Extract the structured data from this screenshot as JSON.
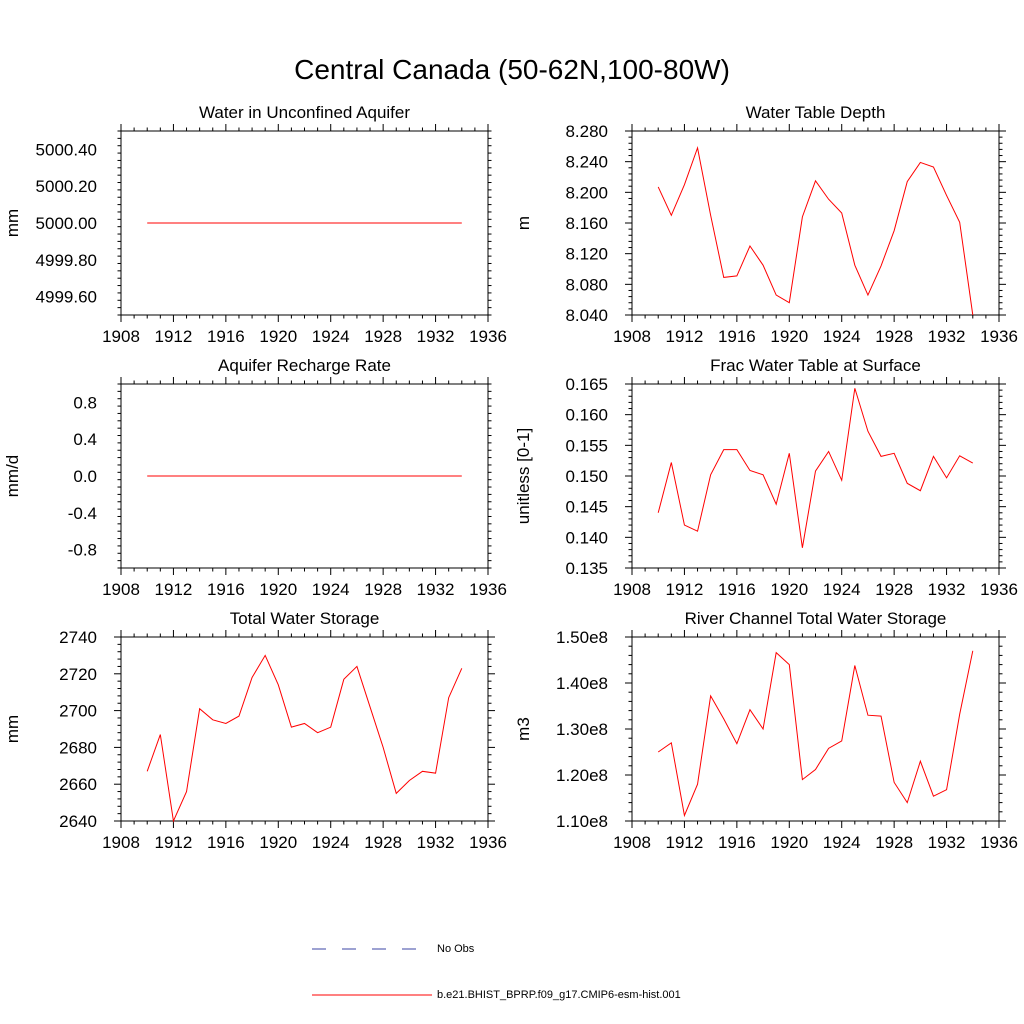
{
  "figure": {
    "title": "Central Canada (50-62N,100-80W)",
    "legend": [
      {
        "label": "No Obs",
        "color": "#3b46a6",
        "dash": true
      },
      {
        "label": "b.e21.BHIST_BPRP.f09_g17.CMIP6-esm-hist.001",
        "color": "#ff0000",
        "dash": false
      }
    ]
  },
  "chart_data": [
    {
      "type": "line",
      "title": "Water in Unconfined Aquifer",
      "xlabel": "",
      "ylabel": "mm",
      "xlim": [
        1908,
        1936
      ],
      "ylim": [
        4999.5,
        5000.5
      ],
      "xticks": [
        1908,
        1912,
        1916,
        1920,
        1924,
        1928,
        1932,
        1936
      ],
      "xtick_labels": [
        "1908",
        "1912",
        "1916",
        "1920",
        "1924",
        "1928",
        "1932",
        "1936"
      ],
      "yticks": [
        4999.6,
        4999.8,
        5000.0,
        5000.2,
        5000.4
      ],
      "ytick_labels": [
        "4999.60",
        "4999.80",
        "5000.00",
        "5000.20",
        "5000.40"
      ],
      "grid": false,
      "x": [
        1910,
        1911,
        1912,
        1913,
        1914,
        1915,
        1916,
        1917,
        1918,
        1919,
        1920,
        1921,
        1922,
        1923,
        1924,
        1925,
        1926,
        1927,
        1928,
        1929,
        1930,
        1931,
        1932,
        1933,
        1934
      ],
      "series": [
        {
          "name": "b.e21.BHIST_BPRP.f09_g17.CMIP6-esm-hist.001",
          "color": "#ff0000",
          "values": [
            5000.0,
            5000.0,
            5000.0,
            5000.0,
            5000.0,
            5000.0,
            5000.0,
            5000.0,
            5000.0,
            5000.0,
            5000.0,
            5000.0,
            5000.0,
            5000.0,
            5000.0,
            5000.0,
            5000.0,
            5000.0,
            5000.0,
            5000.0,
            5000.0,
            5000.0,
            5000.0,
            5000.0,
            5000.0
          ]
        }
      ]
    },
    {
      "type": "line",
      "title": "Water Table Depth",
      "xlabel": "",
      "ylabel": "m",
      "xlim": [
        1908,
        1936
      ],
      "ylim": [
        8.04,
        8.28
      ],
      "xticks": [
        1908,
        1912,
        1916,
        1920,
        1924,
        1928,
        1932,
        1936
      ],
      "xtick_labels": [
        "1908",
        "1912",
        "1916",
        "1920",
        "1924",
        "1928",
        "1932",
        "1936"
      ],
      "yticks": [
        8.04,
        8.08,
        8.12,
        8.16,
        8.2,
        8.24,
        8.28
      ],
      "ytick_labels": [
        "8.040",
        "8.080",
        "8.120",
        "8.160",
        "8.200",
        "8.240",
        "8.280"
      ],
      "grid": false,
      "x": [
        1910,
        1911,
        1912,
        1913,
        1914,
        1915,
        1916,
        1917,
        1918,
        1919,
        1920,
        1921,
        1922,
        1923,
        1924,
        1925,
        1926,
        1927,
        1928,
        1929,
        1930,
        1931,
        1932,
        1933,
        1934
      ],
      "series": [
        {
          "name": "b.e21.BHIST_BPRP.f09_g17.CMIP6-esm-hist.001",
          "color": "#ff0000",
          "values": [
            8.207,
            8.17,
            8.21,
            8.258,
            8.17,
            8.089,
            8.091,
            8.13,
            8.105,
            8.066,
            8.056,
            8.168,
            8.215,
            8.191,
            8.173,
            8.105,
            8.066,
            8.104,
            8.15,
            8.214,
            8.239,
            8.233,
            8.196,
            8.161,
            8.04
          ]
        }
      ]
    },
    {
      "type": "line",
      "title": "Aquifer Recharge Rate",
      "xlabel": "",
      "ylabel": "mm/d",
      "xlim": [
        1908,
        1936
      ],
      "ylim": [
        -1.0,
        1.0
      ],
      "xticks": [
        1908,
        1912,
        1916,
        1920,
        1924,
        1928,
        1932,
        1936
      ],
      "xtick_labels": [
        "1908",
        "1912",
        "1916",
        "1920",
        "1924",
        "1928",
        "1932",
        "1936"
      ],
      "yticks": [
        -0.8,
        -0.4,
        0.0,
        0.4,
        0.8
      ],
      "ytick_labels": [
        "-0.8",
        "-0.4",
        "0.0",
        "0.4",
        "0.8"
      ],
      "grid": false,
      "x": [
        1910,
        1911,
        1912,
        1913,
        1914,
        1915,
        1916,
        1917,
        1918,
        1919,
        1920,
        1921,
        1922,
        1923,
        1924,
        1925,
        1926,
        1927,
        1928,
        1929,
        1930,
        1931,
        1932,
        1933,
        1934
      ],
      "series": [
        {
          "name": "b.e21.BHIST_BPRP.f09_g17.CMIP6-esm-hist.001",
          "color": "#ff0000",
          "values": [
            0,
            0,
            0,
            0,
            0,
            0,
            0,
            0,
            0,
            0,
            0,
            0,
            0,
            0,
            0,
            0,
            0,
            0,
            0,
            0,
            0,
            0,
            0,
            0,
            0
          ]
        }
      ]
    },
    {
      "type": "line",
      "title": "Frac Water Table at Surface",
      "xlabel": "",
      "ylabel": "unitless [0-1]",
      "xlim": [
        1908,
        1936
      ],
      "ylim": [
        0.135,
        0.165
      ],
      "xticks": [
        1908,
        1912,
        1916,
        1920,
        1924,
        1928,
        1932,
        1936
      ],
      "xtick_labels": [
        "1908",
        "1912",
        "1916",
        "1920",
        "1924",
        "1928",
        "1932",
        "1936"
      ],
      "yticks": [
        0.135,
        0.14,
        0.145,
        0.15,
        0.155,
        0.16,
        0.165
      ],
      "ytick_labels": [
        "0.135",
        "0.140",
        "0.145",
        "0.150",
        "0.155",
        "0.160",
        "0.165"
      ],
      "grid": false,
      "x": [
        1910,
        1911,
        1912,
        1913,
        1914,
        1915,
        1916,
        1917,
        1918,
        1919,
        1920,
        1921,
        1922,
        1923,
        1924,
        1925,
        1926,
        1927,
        1928,
        1929,
        1930,
        1931,
        1932,
        1933,
        1934
      ],
      "series": [
        {
          "name": "b.e21.BHIST_BPRP.f09_g17.CMIP6-esm-hist.001",
          "color": "#ff0000",
          "values": [
            0.144,
            0.1522,
            0.142,
            0.141,
            0.1502,
            0.1543,
            0.1543,
            0.1509,
            0.1502,
            0.1454,
            0.1537,
            0.1383,
            0.1508,
            0.154,
            0.1493,
            0.1643,
            0.1573,
            0.1532,
            0.1537,
            0.1488,
            0.1476,
            0.1532,
            0.1497,
            0.1533,
            0.1521
          ]
        }
      ]
    },
    {
      "type": "line",
      "title": "Total Water Storage",
      "xlabel": "",
      "ylabel": "mm",
      "xlim": [
        1908,
        1936
      ],
      "ylim": [
        2640,
        2740
      ],
      "xticks": [
        1908,
        1912,
        1916,
        1920,
        1924,
        1928,
        1932,
        1936
      ],
      "xtick_labels": [
        "1908",
        "1912",
        "1916",
        "1920",
        "1924",
        "1928",
        "1932",
        "1936"
      ],
      "yticks": [
        2640,
        2660,
        2680,
        2700,
        2720,
        2740
      ],
      "ytick_labels": [
        "2640",
        "2660",
        "2680",
        "2700",
        "2720",
        "2740"
      ],
      "grid": false,
      "x": [
        1910,
        1911,
        1912,
        1913,
        1914,
        1915,
        1916,
        1917,
        1918,
        1919,
        1920,
        1921,
        1922,
        1923,
        1924,
        1925,
        1926,
        1927,
        1928,
        1929,
        1930,
        1931,
        1932,
        1933,
        1934
      ],
      "series": [
        {
          "name": "b.e21.BHIST_BPRP.f09_g17.CMIP6-esm-hist.001",
          "color": "#ff0000",
          "values": [
            2667,
            2687,
            2640,
            2656,
            2701,
            2695,
            2693,
            2697,
            2718,
            2730,
            2714,
            2691,
            2693,
            2688,
            2691,
            2717,
            2724,
            2702,
            2680,
            2655,
            2662,
            2667,
            2666,
            2707,
            2723
          ]
        }
      ]
    },
    {
      "type": "line",
      "title": "River Channel Total Water Storage",
      "xlabel": "",
      "ylabel": "m3",
      "xlim": [
        1908,
        1936
      ],
      "ylim": [
        110000000,
        150000000
      ],
      "xticks": [
        1908,
        1912,
        1916,
        1920,
        1924,
        1928,
        1932,
        1936
      ],
      "xtick_labels": [
        "1908",
        "1912",
        "1916",
        "1920",
        "1924",
        "1928",
        "1932",
        "1936"
      ],
      "yticks": [
        110000000,
        120000000,
        130000000,
        140000000,
        150000000
      ],
      "ytick_labels": [
        "1.10e8",
        "1.20e8",
        "1.30e8",
        "1.40e8",
        "1.50e8"
      ],
      "grid": false,
      "x": [
        1910,
        1911,
        1912,
        1913,
        1914,
        1915,
        1916,
        1917,
        1918,
        1919,
        1920,
        1921,
        1922,
        1923,
        1924,
        1925,
        1926,
        1927,
        1928,
        1929,
        1930,
        1931,
        1932,
        1933,
        1934
      ],
      "series": [
        {
          "name": "b.e21.BHIST_BPRP.f09_g17.CMIP6-esm-hist.001",
          "color": "#ff0000",
          "values": [
            125000000,
            127000000,
            111200000,
            118000000,
            137200000,
            132200000,
            126800000,
            134200000,
            130000000,
            146600000,
            144000000,
            119000000,
            121200000,
            125800000,
            127400000,
            143800000,
            133000000,
            132800000,
            118400000,
            114000000,
            123000000,
            115400000,
            116800000,
            133200000,
            147000000
          ]
        }
      ]
    }
  ]
}
